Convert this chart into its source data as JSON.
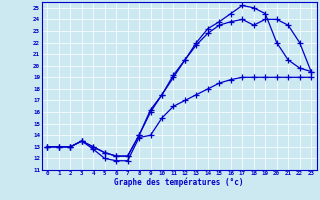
{
  "xlabel": "Graphe des températures (°c)",
  "xlim": [
    -0.5,
    23.5
  ],
  "ylim": [
    11,
    25.5
  ],
  "yticks": [
    11,
    12,
    13,
    14,
    15,
    16,
    17,
    18,
    19,
    20,
    21,
    22,
    23,
    24,
    25
  ],
  "xticks": [
    0,
    1,
    2,
    3,
    4,
    5,
    6,
    7,
    8,
    9,
    10,
    11,
    12,
    13,
    14,
    15,
    16,
    17,
    18,
    19,
    20,
    21,
    22,
    23
  ],
  "background_color": "#cce8f0",
  "line_color": "#0000cc",
  "line1_x": [
    0,
    1,
    2,
    3,
    4,
    5,
    6,
    7,
    8,
    9,
    10,
    11,
    12,
    13,
    14,
    15,
    16,
    17,
    18,
    19,
    20,
    21,
    22,
    23
  ],
  "line1_y": [
    13.0,
    13.0,
    13.0,
    13.5,
    13.0,
    12.5,
    12.2,
    12.2,
    14.0,
    16.2,
    17.5,
    19.2,
    20.5,
    22.0,
    23.2,
    23.8,
    24.5,
    25.2,
    25.0,
    24.5,
    22.0,
    20.5,
    19.8,
    19.5
  ],
  "line2_x": [
    0,
    1,
    2,
    3,
    4,
    5,
    6,
    7,
    8,
    9,
    10,
    11,
    12,
    13,
    14,
    15,
    16,
    17,
    18,
    19,
    20,
    21,
    22,
    23
  ],
  "line2_y": [
    13.0,
    13.0,
    13.0,
    13.5,
    13.0,
    12.5,
    12.2,
    12.2,
    14.0,
    16.0,
    17.5,
    19.0,
    20.5,
    21.8,
    22.8,
    23.5,
    23.8,
    24.0,
    23.5,
    24.0,
    24.0,
    23.5,
    22.0,
    19.5
  ],
  "line3_x": [
    0,
    1,
    2,
    3,
    4,
    5,
    6,
    7,
    8,
    9,
    10,
    11,
    12,
    13,
    14,
    15,
    16,
    17,
    18,
    19,
    20,
    21,
    22,
    23
  ],
  "line3_y": [
    13.0,
    13.0,
    13.0,
    13.5,
    12.8,
    12.0,
    11.8,
    11.8,
    13.8,
    14.0,
    15.5,
    16.5,
    17.0,
    17.5,
    18.0,
    18.5,
    18.8,
    19.0,
    19.0,
    19.0,
    19.0,
    19.0,
    19.0,
    19.0
  ]
}
